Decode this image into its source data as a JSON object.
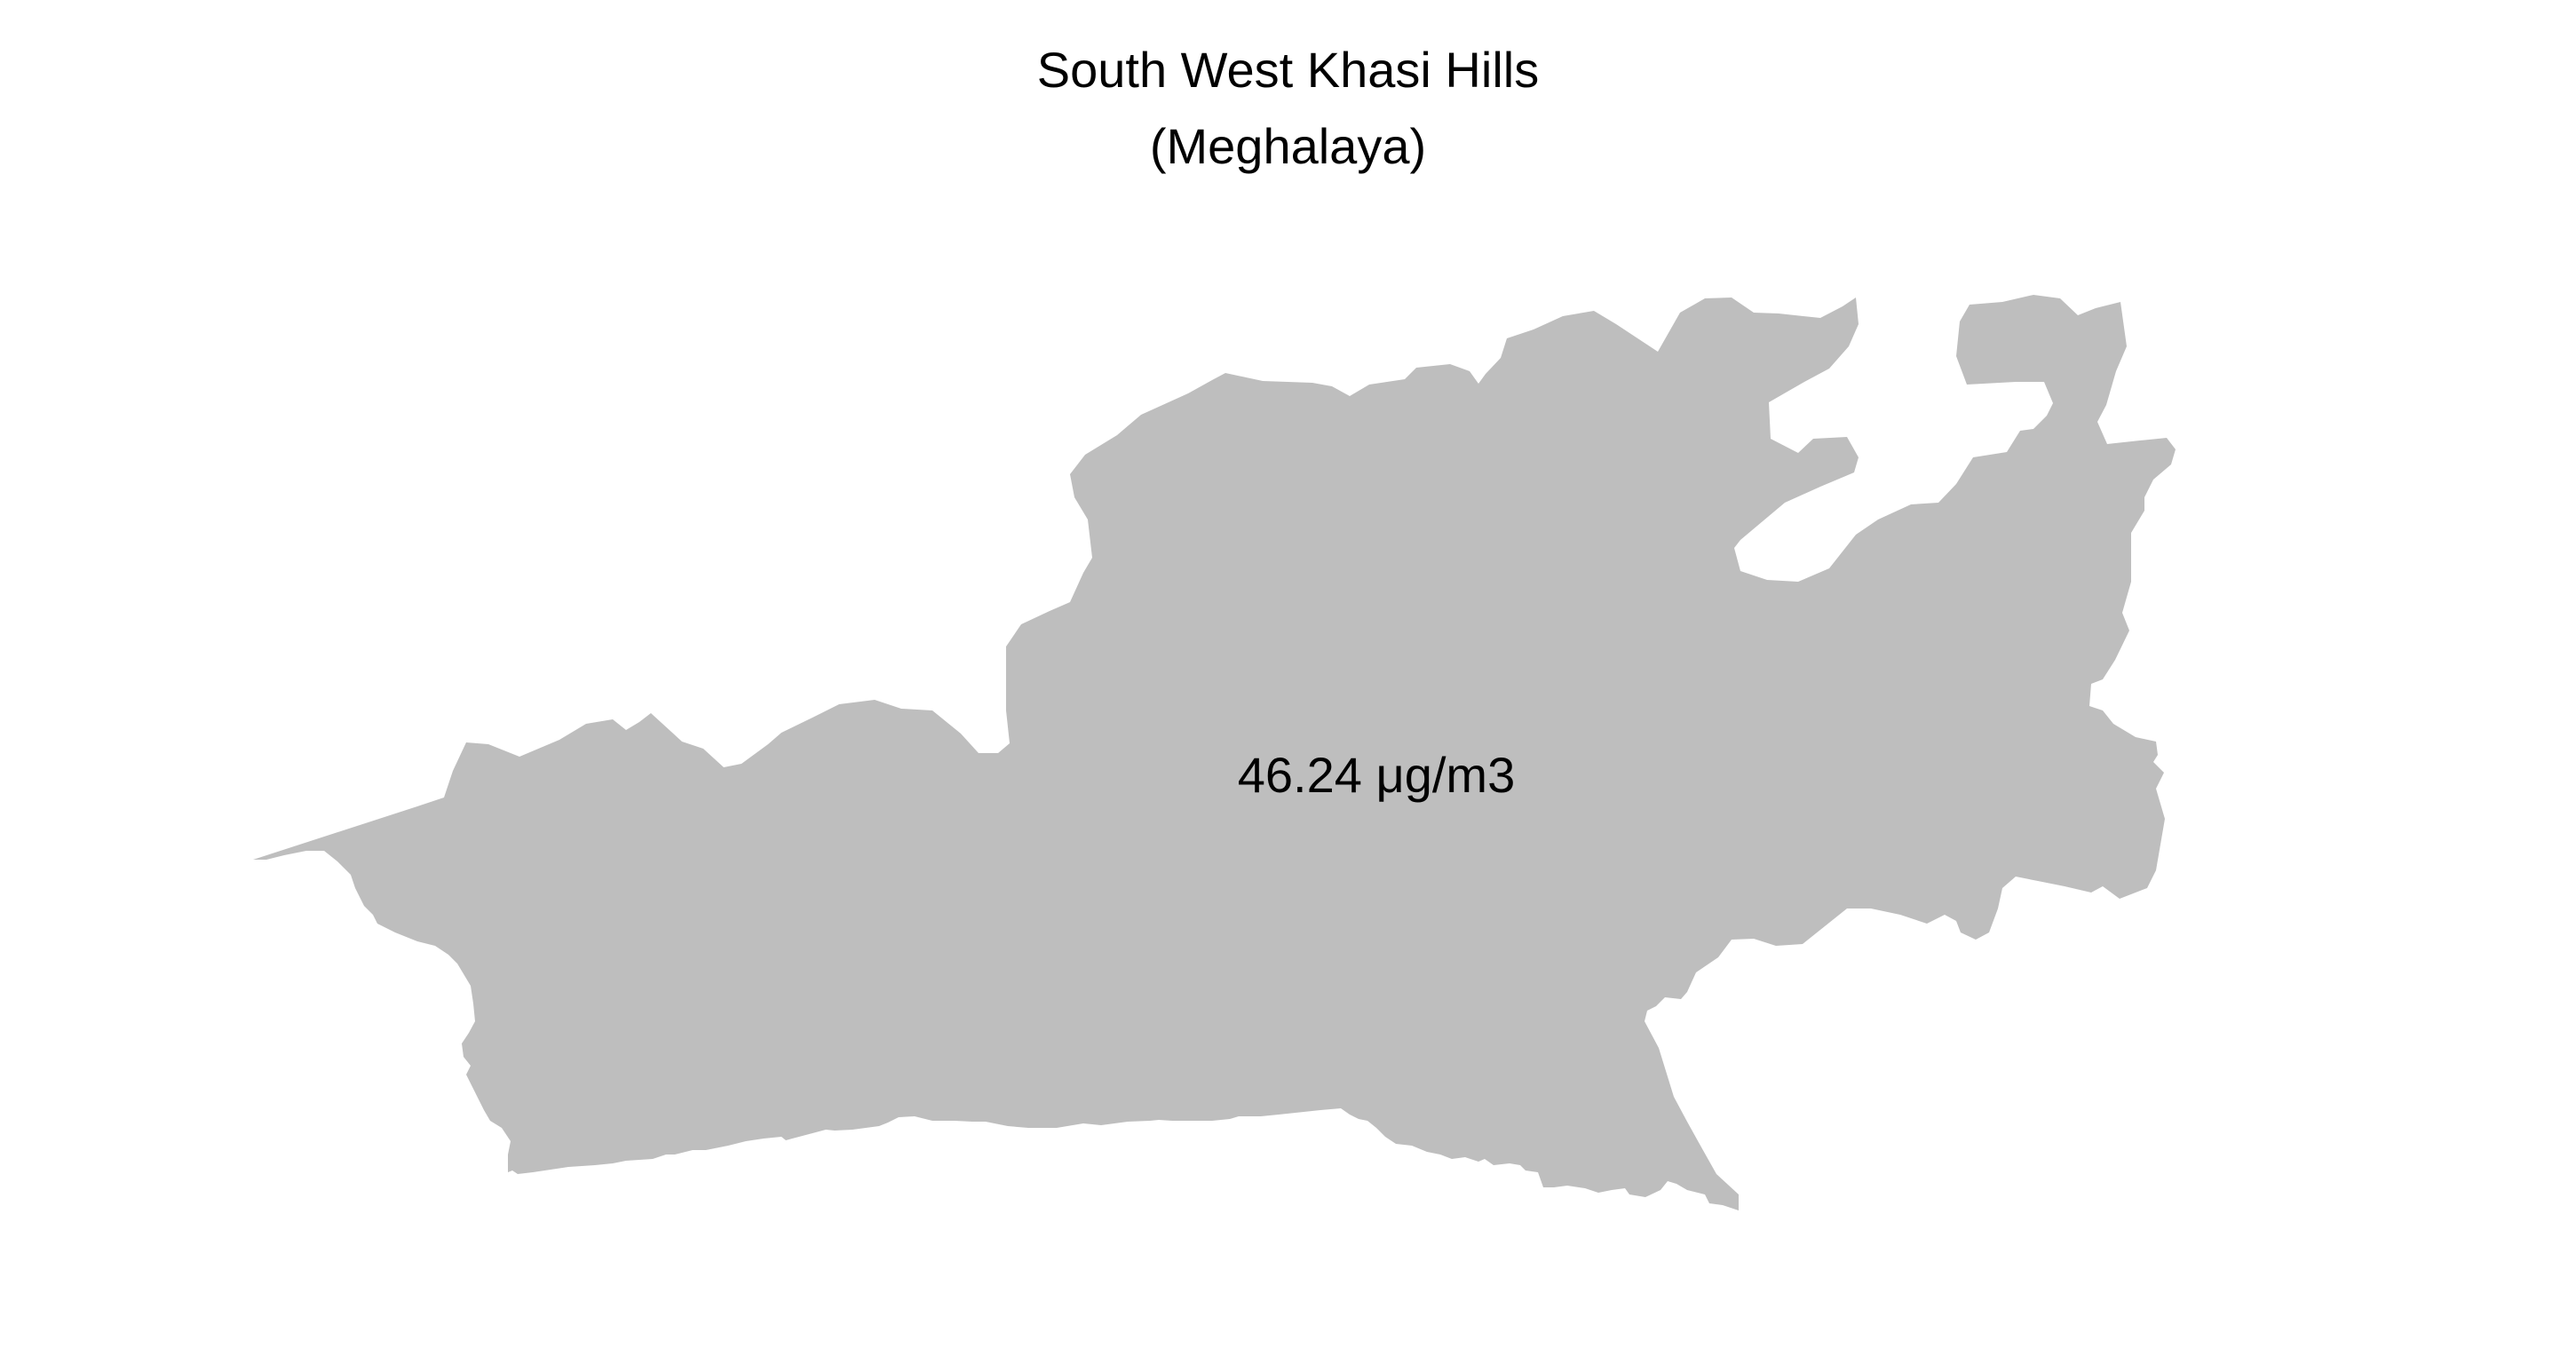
{
  "map": {
    "title": "South West Khasi Hills",
    "subtitle": "(Meghalaya)",
    "region": {
      "name": "South West Khasi Hills",
      "state": "Meghalaya",
      "value_label": "46.24 μg/m3",
      "fill_color": "#bebebe"
    },
    "background_color": "#ffffff",
    "text_color": "#000000"
  }
}
